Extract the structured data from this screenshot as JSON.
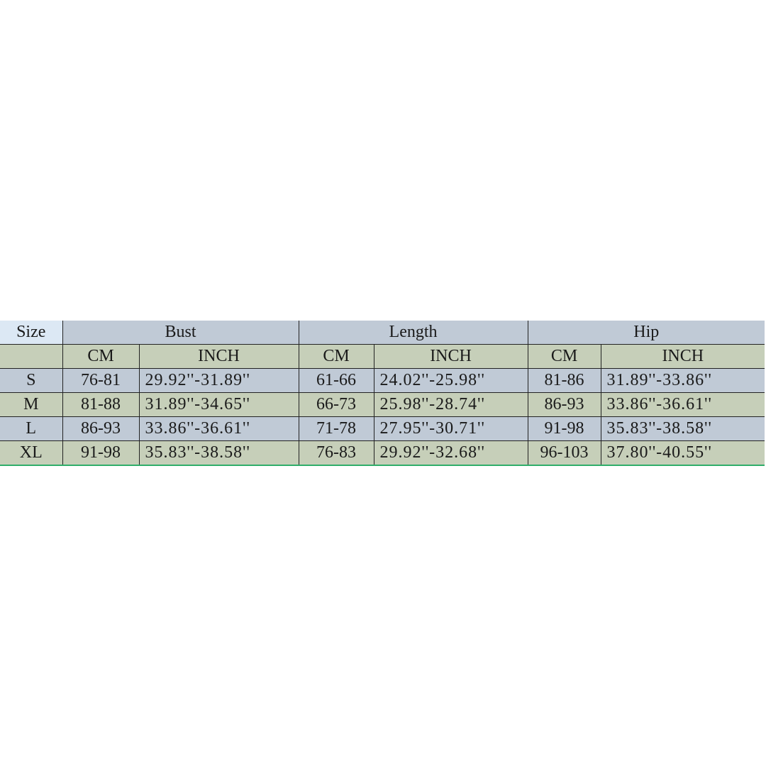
{
  "header": {
    "size_label": "Size",
    "groups": [
      "Bust",
      "Length",
      "Hip"
    ],
    "units": [
      "CM",
      "INCH",
      "CM",
      "INCH",
      "CM",
      "INCH"
    ]
  },
  "rows": [
    {
      "size": "S",
      "cells": [
        "76-81",
        "29.92''-31.89''",
        "61-66",
        "24.02''-25.98''",
        "81-86",
        "31.89''-33.86''"
      ]
    },
    {
      "size": "M",
      "cells": [
        "81-88",
        "31.89''-34.65''",
        "66-73",
        "25.98''-28.74''",
        "86-93",
        "33.86''-36.61''"
      ]
    },
    {
      "size": "L",
      "cells": [
        "86-93",
        "33.86''-36.61''",
        "71-78",
        "27.95''-30.71''",
        "91-98",
        "35.83''-38.58''"
      ]
    },
    {
      "size": "XL",
      "cells": [
        "91-98",
        "35.83''-38.58''",
        "76-83",
        "29.92''-32.68''",
        "96-103",
        "37.80''-40.55''"
      ]
    }
  ]
}
